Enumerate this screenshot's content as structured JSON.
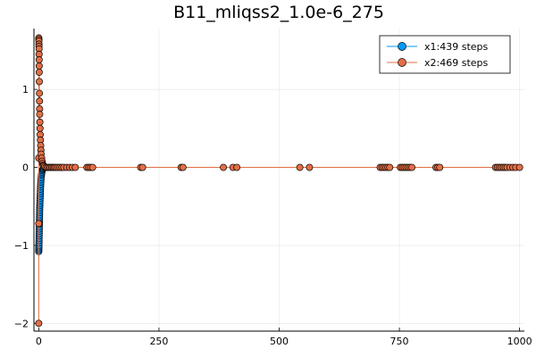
{
  "chart_data": {
    "type": "scatter",
    "title": "B11_mliqss2_1.0e-6_275",
    "xlabel": "",
    "ylabel": "",
    "xlim": [
      -10,
      1010
    ],
    "ylim": [
      -2.1,
      1.78
    ],
    "x_ticks": [
      0,
      250,
      500,
      750,
      1000
    ],
    "x_tick_labels": [
      "0",
      "250",
      "500",
      "750",
      "1000"
    ],
    "y_ticks": [
      -2,
      -1,
      0,
      1
    ],
    "y_tick_labels": [
      "−2",
      "−1",
      "0",
      "1"
    ],
    "grid": true,
    "legend_position": "top-right",
    "colors": {
      "x1": "#009af9",
      "x2": "#e26f46"
    },
    "series": [
      {
        "name": "x1:439 steps",
        "color": "#009af9",
        "points": [
          [
            0,
            -1.08
          ],
          [
            0.1,
            -1.06
          ],
          [
            0.2,
            -1.04
          ],
          [
            0.3,
            -1.02
          ],
          [
            0.4,
            -1.0
          ],
          [
            0.5,
            -0.97
          ],
          [
            0.6,
            -0.94
          ],
          [
            0.7,
            -0.91
          ],
          [
            0.8,
            -0.88
          ],
          [
            0.9,
            -0.85
          ],
          [
            1.0,
            -0.82
          ],
          [
            1.1,
            -0.79
          ],
          [
            1.2,
            -0.76
          ],
          [
            1.3,
            -0.73
          ],
          [
            1.4,
            -0.7
          ],
          [
            1.5,
            -0.67
          ],
          [
            1.6,
            -0.64
          ],
          [
            1.7,
            -0.61
          ],
          [
            1.8,
            -0.58
          ],
          [
            1.9,
            -0.55
          ],
          [
            2.0,
            -0.52
          ],
          [
            2.2,
            -0.49
          ],
          [
            2.4,
            -0.46
          ],
          [
            2.6,
            -0.43
          ],
          [
            2.8,
            -0.4
          ],
          [
            3.0,
            -0.37
          ],
          [
            3.2,
            -0.34
          ],
          [
            3.4,
            -0.31
          ],
          [
            3.6,
            -0.28
          ],
          [
            3.8,
            -0.25
          ],
          [
            4.0,
            -0.22
          ],
          [
            4.3,
            -0.19
          ],
          [
            4.6,
            -0.16
          ],
          [
            5.0,
            -0.13
          ],
          [
            5.5,
            -0.1
          ],
          [
            6.0,
            -0.08
          ],
          [
            6.5,
            -0.06
          ],
          [
            7.0,
            -0.04
          ],
          [
            8.0,
            -0.03
          ],
          [
            9.0,
            -0.02
          ],
          [
            10,
            -0.01
          ],
          [
            12,
            0
          ],
          [
            14,
            0
          ],
          [
            16,
            0
          ]
        ]
      },
      {
        "name": "x2:469 steps",
        "color": "#e26f46",
        "points": [
          [
            0,
            -2.0
          ],
          [
            0,
            -0.72
          ],
          [
            0,
            0.12
          ],
          [
            0.1,
            1.66
          ],
          [
            0.2,
            1.64
          ],
          [
            0.3,
            1.62
          ],
          [
            0.4,
            1.58
          ],
          [
            0.5,
            1.55
          ],
          [
            0.6,
            1.52
          ],
          [
            0.7,
            1.45
          ],
          [
            0.8,
            1.38
          ],
          [
            0.9,
            1.3
          ],
          [
            1.0,
            1.22
          ],
          [
            1.2,
            1.1
          ],
          [
            1.4,
            0.95
          ],
          [
            1.6,
            0.85
          ],
          [
            1.8,
            0.75
          ],
          [
            2.0,
            0.68
          ],
          [
            2.3,
            0.58
          ],
          [
            2.6,
            0.5
          ],
          [
            3.0,
            0.42
          ],
          [
            3.5,
            0.35
          ],
          [
            4.0,
            0.28
          ],
          [
            4.5,
            0.22
          ],
          [
            5.0,
            0.17
          ],
          [
            6.0,
            0.12
          ],
          [
            7.0,
            0.08
          ],
          [
            8.0,
            0.05
          ],
          [
            9.0,
            0.03
          ],
          [
            10,
            0.02
          ],
          [
            12,
            0.01
          ],
          [
            15,
            0
          ],
          [
            18,
            0
          ],
          [
            21,
            0
          ],
          [
            24,
            0
          ],
          [
            27,
            0
          ],
          [
            30,
            0
          ],
          [
            33,
            0
          ],
          [
            36,
            0
          ],
          [
            40,
            0
          ],
          [
            44,
            0
          ],
          [
            48,
            0
          ],
          [
            52,
            0
          ],
          [
            58,
            0
          ],
          [
            64,
            0
          ],
          [
            70,
            0
          ],
          [
            76,
            0
          ],
          [
            100,
            0
          ],
          [
            104,
            0
          ],
          [
            108,
            0
          ],
          [
            112,
            0
          ],
          [
            212,
            0
          ],
          [
            216,
            0
          ],
          [
            296,
            0
          ],
          [
            300,
            0
          ],
          [
            384,
            0
          ],
          [
            404,
            0
          ],
          [
            412,
            0
          ],
          [
            543,
            0
          ],
          [
            563,
            0
          ],
          [
            710,
            0
          ],
          [
            714,
            0
          ],
          [
            718,
            0
          ],
          [
            722,
            0
          ],
          [
            726,
            0
          ],
          [
            730,
            0
          ],
          [
            752,
            0
          ],
          [
            756,
            0
          ],
          [
            760,
            0
          ],
          [
            764,
            0
          ],
          [
            768,
            0
          ],
          [
            772,
            0
          ],
          [
            776,
            0
          ],
          [
            826,
            0
          ],
          [
            830,
            0
          ],
          [
            834,
            0
          ],
          [
            950,
            0
          ],
          [
            954,
            0
          ],
          [
            958,
            0
          ],
          [
            962,
            0
          ],
          [
            966,
            0
          ],
          [
            970,
            0
          ],
          [
            974,
            0
          ],
          [
            980,
            0
          ],
          [
            986,
            0
          ],
          [
            992,
            0
          ],
          [
            1000,
            0
          ]
        ]
      }
    ]
  }
}
